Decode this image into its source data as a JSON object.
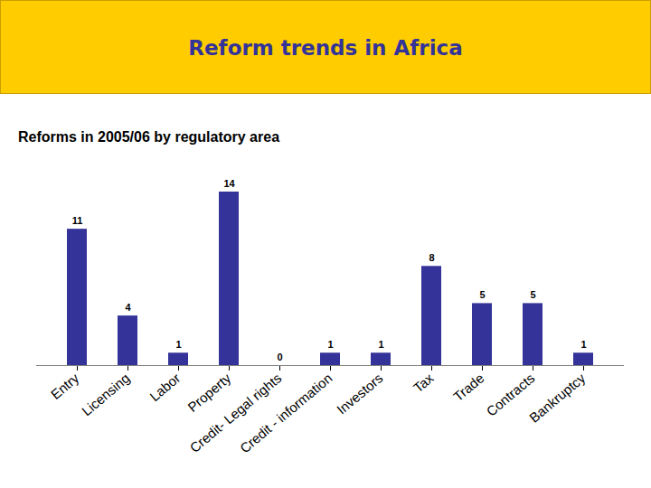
{
  "chart_data": {
    "type": "bar",
    "title": "Reform trends in Africa",
    "subtitle": "Reforms in 2005/06 by regulatory area",
    "categories": [
      "Entry",
      "Licensing",
      "Labor",
      "Property",
      "Credit- Legal rights",
      "Credit - information",
      "Investors",
      "Tax",
      "Trade",
      "Contracts",
      "Bankruptcy"
    ],
    "values": [
      11,
      4,
      1,
      14,
      0,
      1,
      1,
      8,
      5,
      5,
      1
    ],
    "color": "#333399",
    "ylim": [
      0,
      14
    ],
    "data_labels": true,
    "tick_labels": "x",
    "grid": false
  }
}
